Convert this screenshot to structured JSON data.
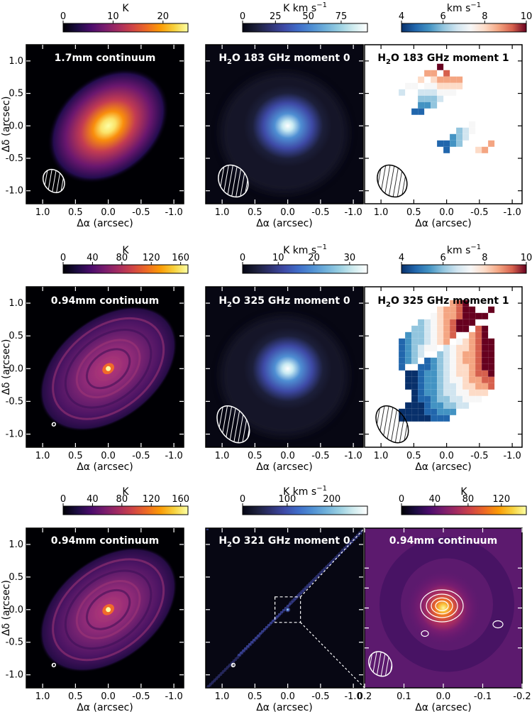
{
  "chart_data": [
    {
      "type": "heatmap",
      "title": "1.7mm continuum",
      "colorbar": {
        "label": "K",
        "ticks": [
          "0",
          "10",
          "20"
        ],
        "range": [
          0,
          25
        ],
        "cmap": "inferno"
      },
      "xlabel": "Δα (arcsec)",
      "ylabel": "Δδ (arcsec)",
      "xticks": [
        "1.0",
        "0.5",
        "0.0",
        "-0.5",
        "-1.0"
      ],
      "yticks": [
        "1.0",
        "0.5",
        "0.0",
        "-0.5",
        "-1.0"
      ],
      "xlim": [
        1.25,
        -1.15
      ],
      "ylim": [
        -1.2,
        1.25
      ],
      "beam": {
        "x": 0.83,
        "y": -0.85,
        "major": 0.38,
        "minor": 0.3
      }
    },
    {
      "type": "heatmap",
      "title_main": "H",
      "title_sub": "2",
      "title_rest": "O 183 GHz moment 0",
      "colorbar": {
        "label": "K km s",
        "label_sup": "−1",
        "ticks": [
          "0",
          "25",
          "50",
          "75"
        ],
        "range": [
          0,
          95
        ],
        "cmap": "ice"
      },
      "xlabel": "Δα (arcsec)",
      "xticks": [
        "1.0",
        "0.5",
        "0.0",
        "-0.5",
        "-1.0"
      ],
      "xlim": [
        1.25,
        -1.15
      ],
      "ylim": [
        -1.2,
        1.25
      ],
      "beam": {
        "x": 0.83,
        "y": -0.85,
        "major": 0.52,
        "minor": 0.42
      }
    },
    {
      "type": "heatmap",
      "title_main": "H",
      "title_sub": "2",
      "title_rest": "O 183 GHz moment 1",
      "colorbar": {
        "label": "km s",
        "label_sup": "−1",
        "ticks": [
          "4",
          "6",
          "8",
          "10"
        ],
        "range": [
          4,
          10
        ],
        "cmap": "RdBu_r"
      },
      "xlabel": "Δα (arcsec)",
      "xticks": [
        "1.0",
        "0.5",
        "0.0",
        "-0.5",
        "-1.0"
      ],
      "xlim": [
        1.25,
        -1.15
      ],
      "ylim": [
        -1.2,
        1.25
      ],
      "beam": {
        "x": 0.83,
        "y": -0.85,
        "major": 0.52,
        "minor": 0.42
      }
    },
    {
      "type": "heatmap",
      "title": "0.94mm continuum",
      "colorbar": {
        "label": "K",
        "ticks": [
          "0",
          "40",
          "80",
          "120",
          "160"
        ],
        "range": [
          0,
          170
        ],
        "cmap": "inferno"
      },
      "xlabel": "Δα (arcsec)",
      "ylabel": "Δδ (arcsec)",
      "xticks": [
        "1.0",
        "0.5",
        "0.0",
        "-0.5",
        "-1.0"
      ],
      "yticks": [
        "1.0",
        "0.5",
        "0.0",
        "-0.5",
        "-1.0"
      ],
      "xlim": [
        1.25,
        -1.15
      ],
      "ylim": [
        -1.2,
        1.25
      ],
      "beam": {
        "x": 0.83,
        "y": -0.85,
        "major": 0.05,
        "minor": 0.04
      }
    },
    {
      "type": "heatmap",
      "title_main": "H",
      "title_sub": "2",
      "title_rest": "O 325 GHz moment 0",
      "colorbar": {
        "label": "K km s",
        "label_sup": "−1",
        "ticks": [
          "0",
          "10",
          "20",
          "30"
        ],
        "range": [
          0,
          35
        ],
        "cmap": "ice"
      },
      "xlabel": "Δα (arcsec)",
      "xticks": [
        "1.0",
        "0.5",
        "0.0",
        "-0.5",
        "-1.0"
      ],
      "xlim": [
        1.25,
        -1.15
      ],
      "ylim": [
        -1.2,
        1.25
      ],
      "beam": {
        "x": 0.83,
        "y": -0.85,
        "major": 0.62,
        "minor": 0.42
      }
    },
    {
      "type": "heatmap",
      "title_main": "H",
      "title_sub": "2",
      "title_rest": "O 325 GHz moment 1",
      "colorbar": {
        "label": "km s",
        "label_sup": "−1",
        "ticks": [
          "4",
          "6",
          "8",
          "10"
        ],
        "range": [
          4,
          10
        ],
        "cmap": "RdBu_r"
      },
      "xlabel": "Δα (arcsec)",
      "xticks": [
        "1.0",
        "0.5",
        "0.0",
        "-0.5",
        "-1.0"
      ],
      "xlim": [
        1.25,
        -1.15
      ],
      "ylim": [
        -1.2,
        1.25
      ],
      "beam": {
        "x": 0.83,
        "y": -0.85,
        "major": 0.62,
        "minor": 0.42
      }
    },
    {
      "type": "heatmap",
      "title": "0.94mm continuum",
      "colorbar": {
        "label": "K",
        "ticks": [
          "0",
          "40",
          "80",
          "120",
          "160"
        ],
        "range": [
          0,
          170
        ],
        "cmap": "inferno"
      },
      "xlabel": "Δα (arcsec)",
      "ylabel": "Δδ (arcsec)",
      "xticks": [
        "1.0",
        "0.5",
        "0.0",
        "-0.5",
        "-1.0"
      ],
      "yticks": [
        "1.0",
        "0.5",
        "0.0",
        "-0.5",
        "-1.0"
      ],
      "xlim": [
        1.25,
        -1.15
      ],
      "ylim": [
        -1.2,
        1.25
      ],
      "beam": {
        "x": 0.83,
        "y": -0.85,
        "major": 0.05,
        "minor": 0.04
      }
    },
    {
      "type": "heatmap",
      "title_main": "H",
      "title_sub": "2",
      "title_rest": "O 321 GHz moment 0",
      "colorbar": {
        "label": "K km s",
        "label_sup": "−1",
        "ticks": [
          "0",
          "100",
          "200"
        ],
        "range": [
          0,
          280
        ],
        "cmap": "ice"
      },
      "xlabel": "Δα (arcsec)",
      "xticks": [
        "1.0",
        "0.5",
        "0.0",
        "-0.5",
        "-1.0"
      ],
      "xlim": [
        1.25,
        -1.15
      ],
      "ylim": [
        -1.2,
        1.25
      ],
      "beam": {
        "x": 0.83,
        "y": -0.85,
        "major": 0.05,
        "minor": 0.04
      }
    },
    {
      "type": "heatmap",
      "title": "0.94mm continuum",
      "colorbar": {
        "label": "K",
        "ticks": [
          "0",
          "40",
          "80",
          "120"
        ],
        "range": [
          0,
          150
        ],
        "cmap": "inferno"
      },
      "xlabel": "Δα (arcsec)",
      "xticks": [
        "0.2",
        "0.1",
        "0.0",
        "-0.1",
        "-0.2"
      ],
      "xlim": [
        0.2,
        -0.2
      ],
      "ylim": [
        -0.2,
        0.2
      ],
      "beam": {
        "x": 0.16,
        "y": -0.14,
        "major": 0.065,
        "minor": 0.055
      }
    }
  ]
}
